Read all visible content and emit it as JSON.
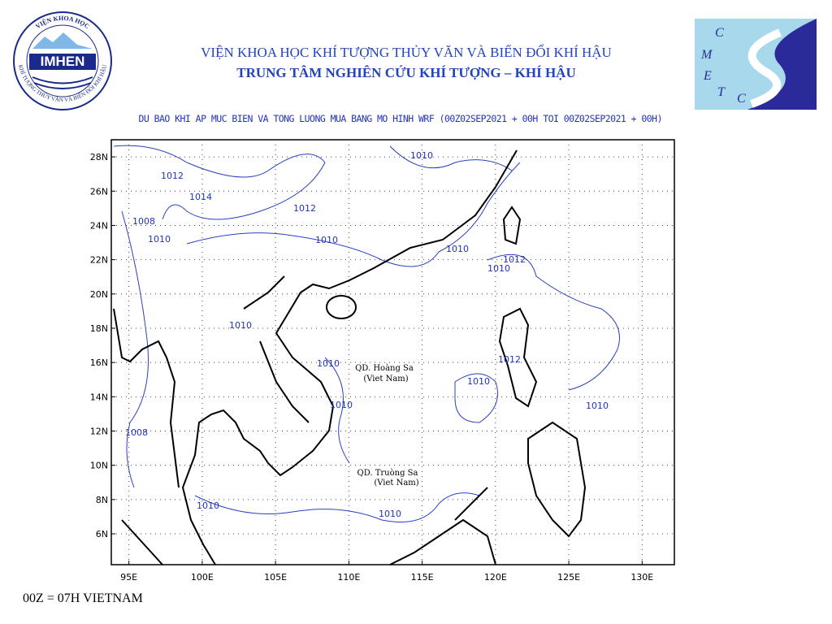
{
  "header": {
    "logo_left": {
      "ring_top": "VIỆN KHOA HỌC",
      "ring_bottom": "KHÍ TƯỢNG THỦY VĂN VÀ BIẾN ĐỔI KHÍ HẬU",
      "name": "IMHEN"
    },
    "title": "VIỆN KHOA HỌC KHÍ TƯỢNG THỦY VĂN VÀ BIẾN ĐỔI KHÍ HẬU",
    "subtitle": "TRUNG TÂM NGHIÊN CỨU KHÍ TƯỢNG – KHÍ HẬU",
    "logo_right": {
      "letters": [
        "C",
        "M",
        "E",
        "T",
        "C"
      ]
    }
  },
  "map": {
    "title": "DU BAO KHI AP MUC BIEN VA TONG LUONG MUA BANG MO HINH WRF (00Z02SEP2021 + 00H TOI 00Z02SEP2021 + 00H)",
    "lonlim": [
      93.8,
      132.2
    ],
    "latlim": [
      4.2,
      29.0
    ],
    "lon_ticks": [
      {
        "value": 95,
        "label": "95E"
      },
      {
        "value": 100,
        "label": "100E"
      },
      {
        "value": 105,
        "label": "105E"
      },
      {
        "value": 110,
        "label": "110E"
      },
      {
        "value": 115,
        "label": "115E"
      },
      {
        "value": 120,
        "label": "120E"
      },
      {
        "value": 125,
        "label": "125E"
      },
      {
        "value": 130,
        "label": "130E"
      }
    ],
    "lat_ticks": [
      {
        "value": 28,
        "label": "28N"
      },
      {
        "value": 26,
        "label": "26N"
      },
      {
        "value": 24,
        "label": "24N"
      },
      {
        "value": 22,
        "label": "22N"
      },
      {
        "value": 20,
        "label": "20N"
      },
      {
        "value": 18,
        "label": "18N"
      },
      {
        "value": 16,
        "label": "16N"
      },
      {
        "value": 14,
        "label": "14N"
      },
      {
        "value": 12,
        "label": "12N"
      },
      {
        "value": 10,
        "label": "10N"
      },
      {
        "value": 8,
        "label": "8N"
      },
      {
        "value": 6,
        "label": "6N"
      }
    ],
    "contour_labels": [
      "1010",
      "1012",
      "1014",
      "1012",
      "1008",
      "1010",
      "1010",
      "1010",
      "1012",
      "1010",
      "1010",
      "1010",
      "1012",
      "1010",
      "1010",
      "1010",
      "1008",
      "1010",
      "1010"
    ],
    "place_labels": [
      "QD. Hoàng Sa",
      "(Viet Nam)",
      "QD. Truòng Sa",
      "(Viet Nam)"
    ]
  },
  "footer": "00Z = 07H VIETNAM"
}
